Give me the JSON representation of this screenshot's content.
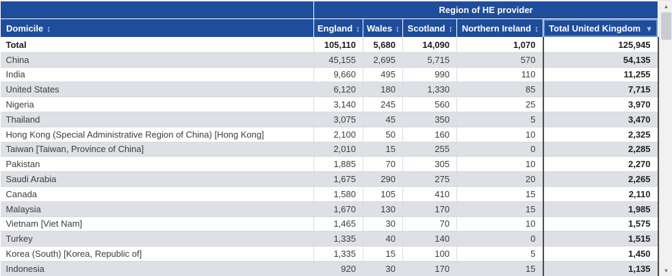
{
  "table": {
    "region_header": "Region of HE provider",
    "columns": [
      {
        "label": "Domicile",
        "icon": "↕",
        "sort": "updown"
      },
      {
        "label": "England",
        "icon": "↕",
        "sort": "updown"
      },
      {
        "label": "Wales",
        "icon": "↕",
        "sort": "updown"
      },
      {
        "label": "Scotland",
        "icon": "↕",
        "sort": "updown"
      },
      {
        "label": "Northern Ireland",
        "icon": "↕",
        "sort": "updown"
      },
      {
        "label": "Total United Kingdom",
        "icon": "▼",
        "sort": "desc"
      }
    ],
    "rows": [
      {
        "domicile": "Total",
        "england": "105,110",
        "wales": "5,680",
        "scotland": "14,090",
        "northern_ireland": "1,070",
        "total_uk": "125,945",
        "bold": true
      },
      {
        "domicile": "China",
        "england": "45,155",
        "wales": "2,695",
        "scotland": "5,715",
        "northern_ireland": "570",
        "total_uk": "54,135",
        "bold": false
      },
      {
        "domicile": "India",
        "england": "9,660",
        "wales": "495",
        "scotland": "990",
        "northern_ireland": "110",
        "total_uk": "11,255",
        "bold": false
      },
      {
        "domicile": "United States",
        "england": "6,120",
        "wales": "180",
        "scotland": "1,330",
        "northern_ireland": "85",
        "total_uk": "7,715",
        "bold": false
      },
      {
        "domicile": "Nigeria",
        "england": "3,140",
        "wales": "245",
        "scotland": "560",
        "northern_ireland": "25",
        "total_uk": "3,970",
        "bold": false
      },
      {
        "domicile": "Thailand",
        "england": "3,075",
        "wales": "45",
        "scotland": "350",
        "northern_ireland": "5",
        "total_uk": "3,470",
        "bold": false
      },
      {
        "domicile": "Hong Kong (Special Administrative Region of China) [Hong Kong]",
        "england": "2,100",
        "wales": "50",
        "scotland": "160",
        "northern_ireland": "10",
        "total_uk": "2,325",
        "bold": false
      },
      {
        "domicile": "Taiwan [Taiwan, Province of China]",
        "england": "2,010",
        "wales": "15",
        "scotland": "255",
        "northern_ireland": "0",
        "total_uk": "2,285",
        "bold": false
      },
      {
        "domicile": "Pakistan",
        "england": "1,885",
        "wales": "70",
        "scotland": "305",
        "northern_ireland": "10",
        "total_uk": "2,270",
        "bold": false
      },
      {
        "domicile": "Saudi Arabia",
        "england": "1,675",
        "wales": "290",
        "scotland": "275",
        "northern_ireland": "20",
        "total_uk": "2,265",
        "bold": false
      },
      {
        "domicile": "Canada",
        "england": "1,580",
        "wales": "105",
        "scotland": "410",
        "northern_ireland": "15",
        "total_uk": "2,110",
        "bold": false
      },
      {
        "domicile": "Malaysia",
        "england": "1,670",
        "wales": "130",
        "scotland": "170",
        "northern_ireland": "15",
        "total_uk": "1,985",
        "bold": false
      },
      {
        "domicile": "Vietnam [Viet Nam]",
        "england": "1,465",
        "wales": "30",
        "scotland": "70",
        "northern_ireland": "10",
        "total_uk": "1,575",
        "bold": false
      },
      {
        "domicile": "Turkey",
        "england": "1,335",
        "wales": "40",
        "scotland": "140",
        "northern_ireland": "0",
        "total_uk": "1,515",
        "bold": false
      },
      {
        "domicile": "Korea (South) [Korea, Republic of]",
        "england": "1,335",
        "wales": "15",
        "scotland": "100",
        "northern_ireland": "5",
        "total_uk": "1,450",
        "bold": false
      },
      {
        "domicile": "Indonesia",
        "england": "920",
        "wales": "30",
        "scotland": "170",
        "northern_ireland": "15",
        "total_uk": "1,135",
        "bold": false
      }
    ]
  },
  "scrollbar": {
    "up_icon": "▲",
    "down_icon": "▼"
  },
  "colors": {
    "header_navy": "#1e4d9b",
    "stripe": "#dde0e5",
    "sorted_header_highlight": "#6d90cc",
    "total_column_border": "#4a4a4a"
  }
}
